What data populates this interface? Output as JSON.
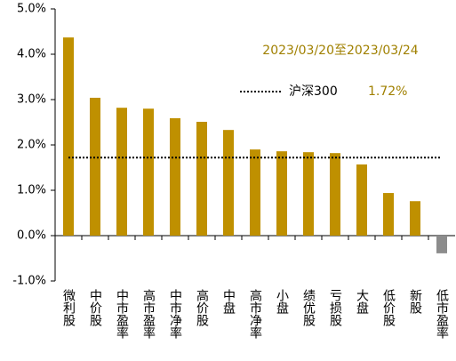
{
  "chart_data": {
    "type": "bar",
    "annotation": "2023/03/20至2023/03/24",
    "categories": [
      "微利股",
      "中价股",
      "中市盈率",
      "高市盈率",
      "中市净率",
      "高价股",
      "中盘",
      "高市净率",
      "小盘",
      "绩优股",
      "亏损股",
      "大盘",
      "低价股",
      "新股",
      "低市盈率"
    ],
    "values": [
      4.37,
      3.04,
      2.82,
      2.8,
      2.59,
      2.51,
      2.33,
      1.9,
      1.86,
      1.84,
      1.82,
      1.57,
      0.94,
      0.76,
      -0.39
    ],
    "color": "#bf9000",
    "negative_color": "#8c8c8c",
    "reference": {
      "name": "沪深300",
      "value": 1.72,
      "value_label": "1.72%",
      "color": "#000000"
    },
    "ylim": [
      -1,
      5
    ],
    "yticks": [
      {
        "value": -1,
        "label": "-1.0%"
      },
      {
        "value": 0,
        "label": "0.0%"
      },
      {
        "value": 1,
        "label": "1.0%"
      },
      {
        "value": 2,
        "label": "2.0%"
      },
      {
        "value": 3,
        "label": "3.0%"
      },
      {
        "value": 4,
        "label": "4.0%"
      },
      {
        "value": 5,
        "label": "5.0%"
      }
    ],
    "grid": false
  }
}
